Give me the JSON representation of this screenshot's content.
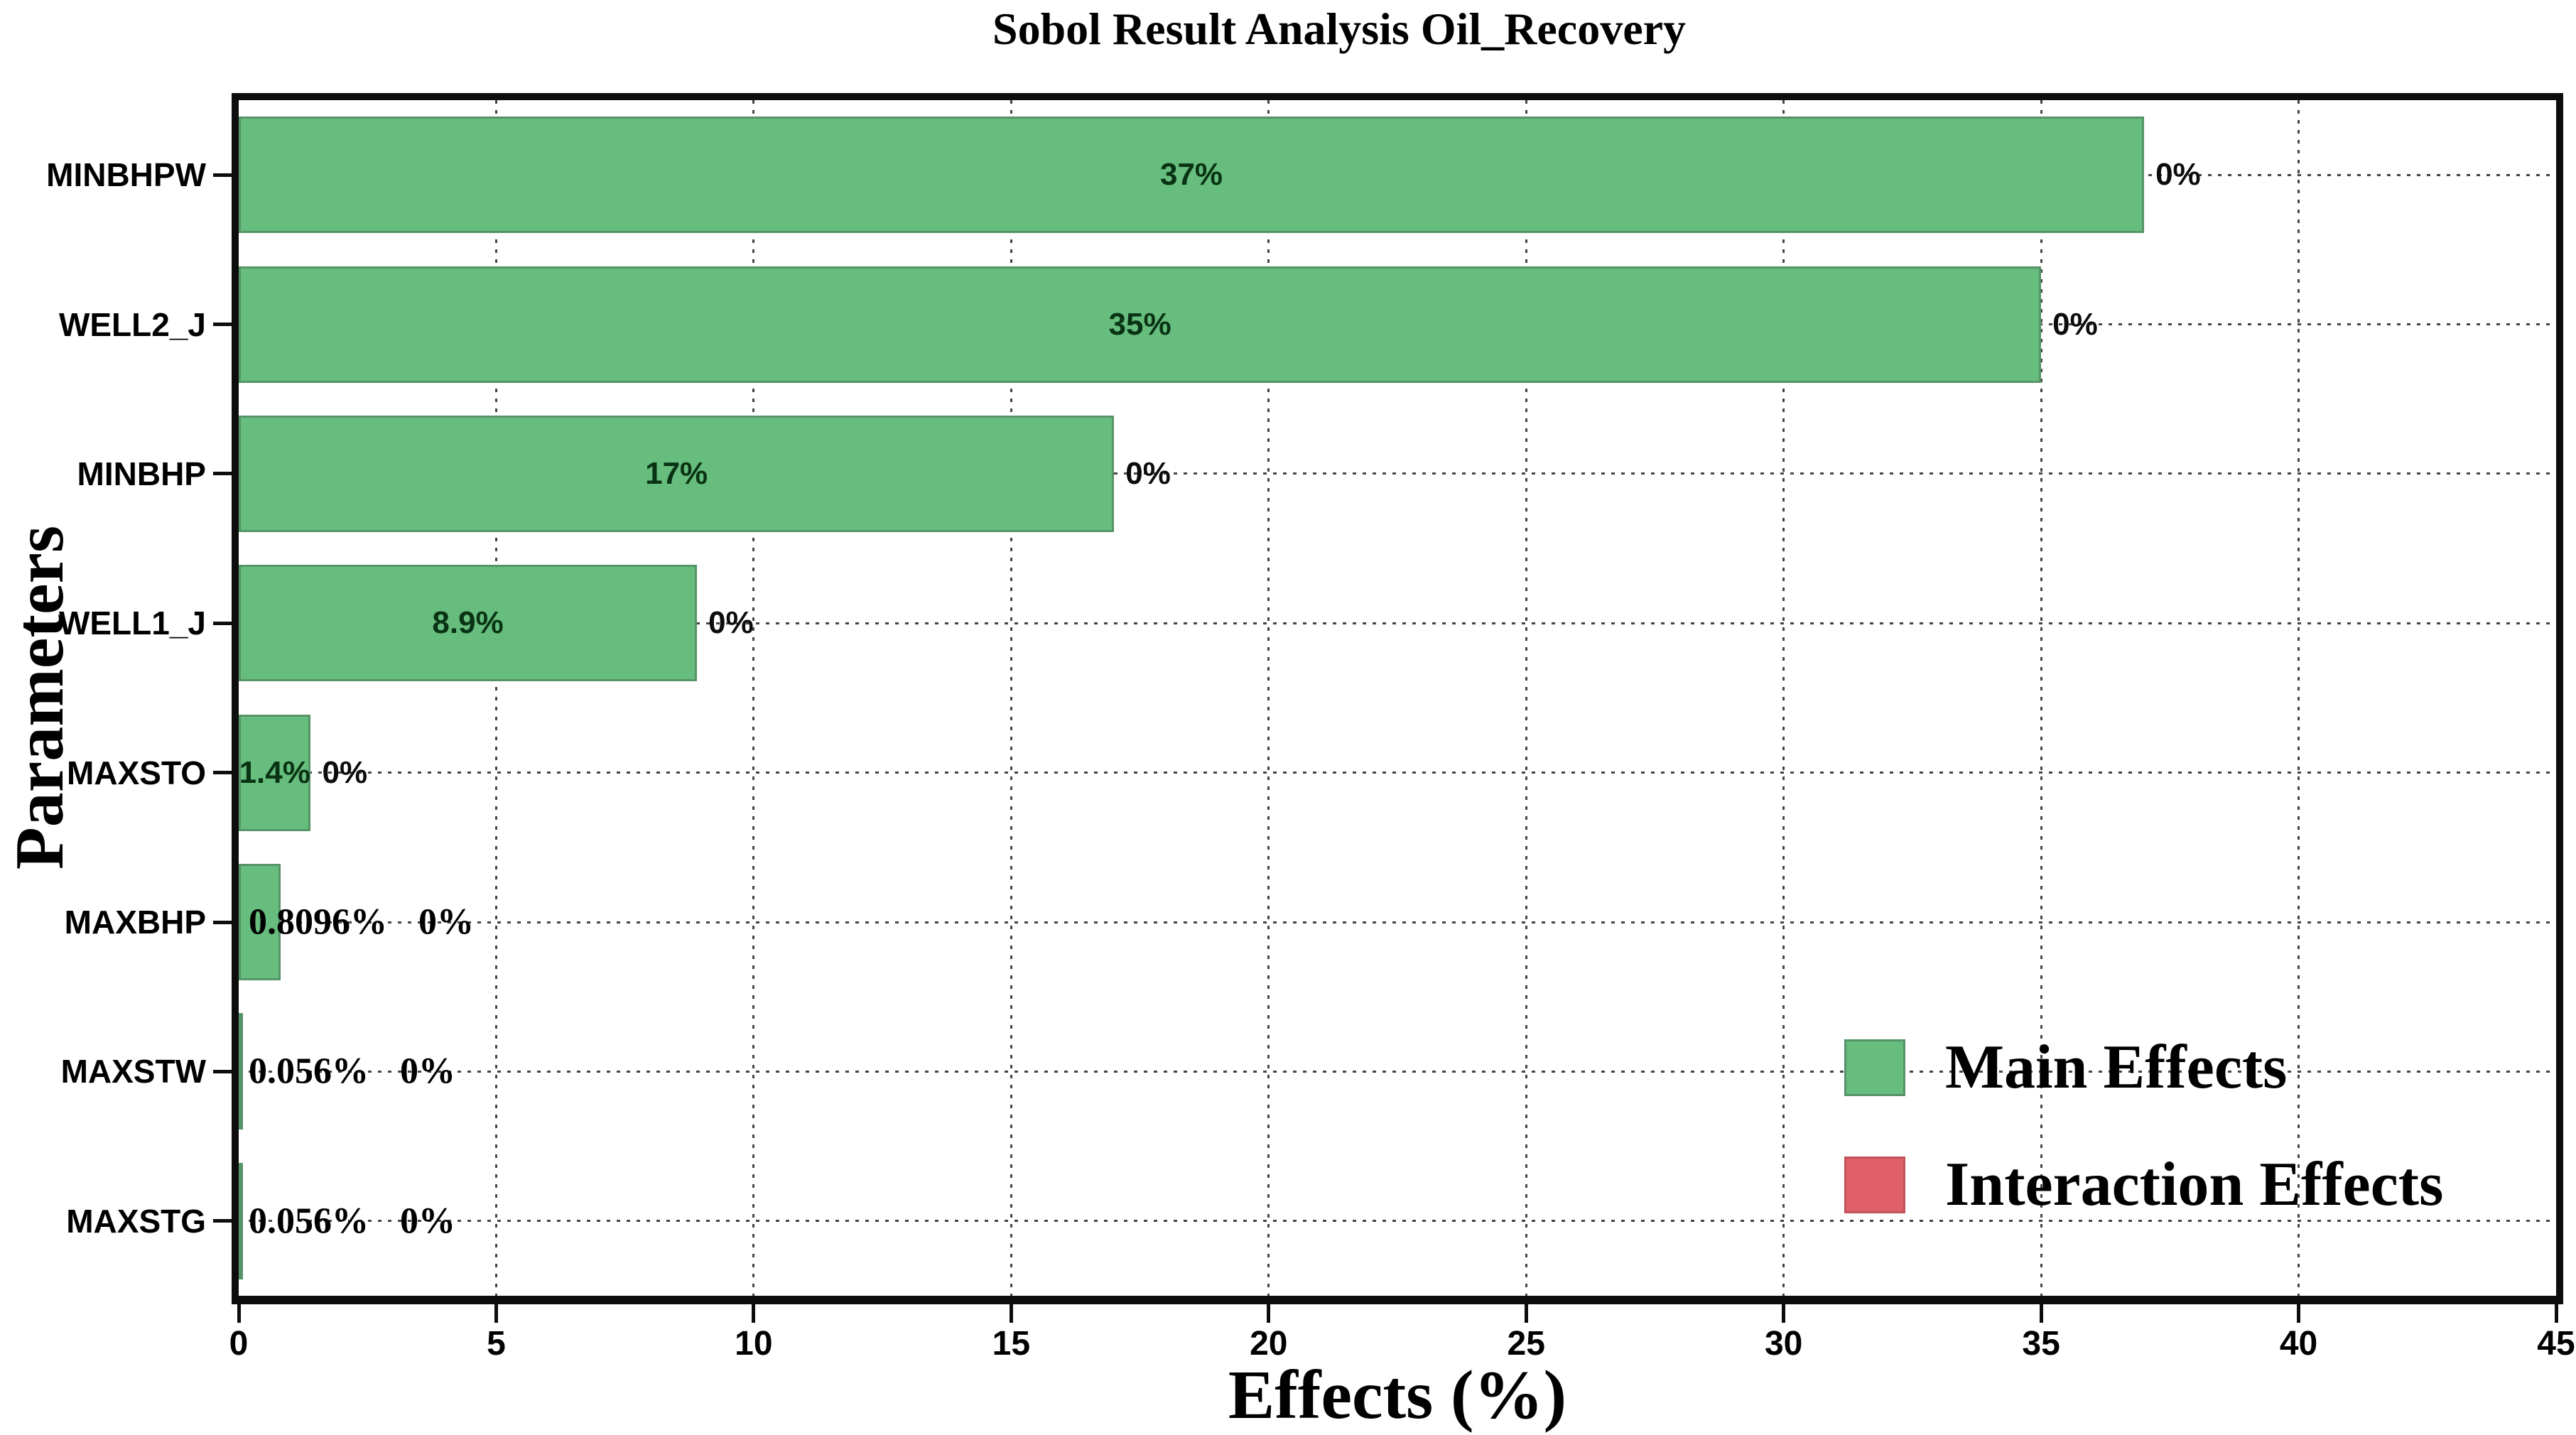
{
  "title": "Sobol Result Analysis Oil_Recovery",
  "chart_data": {
    "type": "bar",
    "orientation": "horizontal",
    "title": "Sobol Result Analysis Oil_Recovery",
    "xlabel": "Effects (%)",
    "ylabel": "Parameters",
    "xlim": [
      0,
      45
    ],
    "xticks": [
      0,
      5,
      10,
      15,
      20,
      25,
      30,
      35,
      40,
      45
    ],
    "xtick_labels": [
      "0",
      "5",
      "10",
      "15",
      "20",
      "25",
      "30",
      "35",
      "40",
      "45"
    ],
    "grid": true,
    "legend_position": "lower right",
    "categories": [
      "MINBHPW",
      "WELL2_J",
      "MINBHP",
      "WELL1_J",
      "MAXSTO",
      "MAXBHP",
      "MAXSTW",
      "MAXSTG"
    ],
    "series": [
      {
        "name": "Main Effects",
        "color": "#66bd7d",
        "values": [
          37,
          35,
          17,
          8.9,
          1.4,
          0.8096,
          0.056,
          0.056
        ],
        "labels": [
          "37%",
          "35%",
          "17%",
          "8.9%",
          "1.4%",
          "0.8096%",
          "0.056%",
          "0.056%"
        ]
      },
      {
        "name": "Interaction Effects",
        "color": "#e0606a",
        "values": [
          0,
          0,
          0,
          0,
          0,
          0,
          0,
          0
        ],
        "labels": [
          "0%",
          "0%",
          "0%",
          "0%",
          "0%",
          "0%",
          "0%",
          "0%"
        ]
      }
    ]
  },
  "legend": {
    "items": [
      {
        "label": "Main Effects",
        "color": "#66bd7d"
      },
      {
        "label": "Interaction Effects",
        "color": "#e0606a"
      }
    ]
  },
  "colors": {
    "bar_fill": "#66bd7d",
    "bar_edge": "#569468",
    "interaction_fill": "#e0606a",
    "bar_value_text": "#093314",
    "grid": "#454545",
    "spine": "#0d0d0d",
    "background": "#ffffff"
  }
}
